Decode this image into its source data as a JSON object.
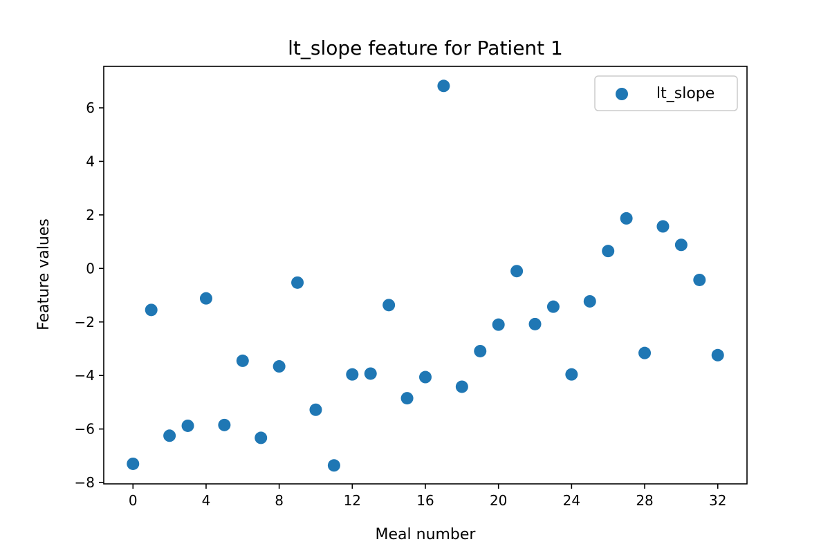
{
  "chart_data": {
    "type": "scatter",
    "title": "lt_slope feature for Patient 1",
    "xlabel": "Meal number",
    "ylabel": "Feature values",
    "xlim": [
      -1.6,
      33.6
    ],
    "ylim": [
      -8.05,
      7.55
    ],
    "xticks": [
      0,
      4,
      8,
      12,
      16,
      20,
      24,
      28,
      32
    ],
    "yticks": [
      -8,
      -6,
      -4,
      -2,
      0,
      2,
      4,
      6
    ],
    "grid": false,
    "legend_position": "top-right",
    "series": [
      {
        "name": "lt_slope",
        "color": "#1f77b4",
        "x": [
          0,
          1,
          2,
          3,
          4,
          5,
          6,
          7,
          8,
          9,
          10,
          11,
          12,
          13,
          14,
          15,
          16,
          17,
          18,
          19,
          20,
          21,
          22,
          23,
          24,
          25,
          26,
          27,
          28,
          29,
          30,
          31,
          32
        ],
        "y": [
          -7.3,
          -1.55,
          -6.25,
          -5.88,
          -1.12,
          -5.85,
          -3.45,
          -6.33,
          -3.66,
          -0.53,
          -5.28,
          -7.36,
          -3.96,
          -3.93,
          -1.37,
          -4.85,
          -4.06,
          6.82,
          -4.42,
          -3.09,
          -2.1,
          -0.1,
          -2.08,
          -1.43,
          -3.96,
          -1.23,
          0.65,
          1.87,
          -3.16,
          1.57,
          0.88,
          -0.43,
          -3.24
        ]
      }
    ]
  }
}
